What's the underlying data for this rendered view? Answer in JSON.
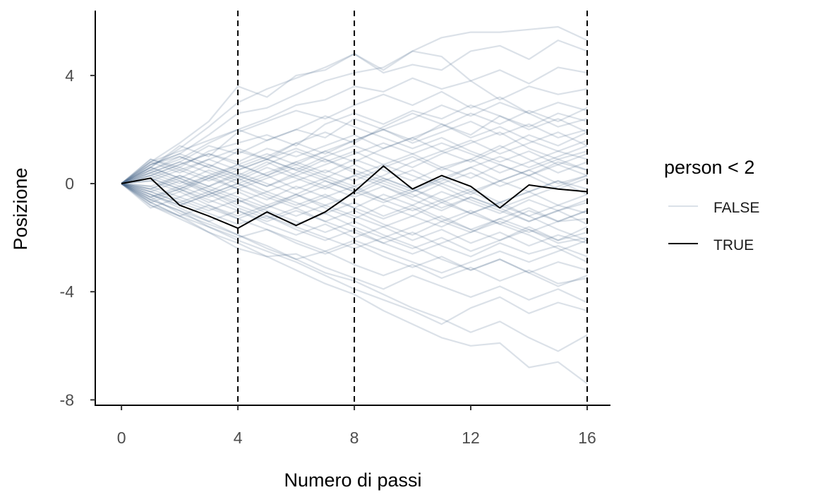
{
  "chart_data": {
    "type": "line",
    "title": "",
    "xlabel": "Numero di passi",
    "ylabel": "Posizione",
    "xlim": [
      -0.9,
      16.8
    ],
    "ylim": [
      -8.2,
      6.4
    ],
    "x_ticks": [
      0,
      4,
      8,
      12,
      16
    ],
    "y_ticks": [
      -8,
      -4,
      0,
      4
    ],
    "x_tick_labels": [
      "0",
      "4",
      "8",
      "12",
      "16"
    ],
    "y_tick_labels": [
      "-8",
      "-4",
      "0",
      "4"
    ],
    "reference_lines_x": [
      4,
      8,
      16
    ],
    "grid": false,
    "legend": {
      "title": "person < 2",
      "position": "right",
      "entries": [
        {
          "label": "FALSE",
          "color": "#4a6a8c",
          "opacity": 0.2
        },
        {
          "label": "TRUE",
          "color": "#000000",
          "opacity": 1
        }
      ]
    },
    "x": [
      0,
      1,
      2,
      3,
      4,
      5,
      6,
      7,
      8,
      9,
      10,
      11,
      12,
      13,
      14,
      15,
      16
    ],
    "series": [
      {
        "group": "TRUE",
        "values": [
          0,
          0.2,
          -0.8,
          -1.2,
          -1.65,
          -1.05,
          -1.55,
          -1.05,
          -0.3,
          0.65,
          -0.2,
          0.3,
          -0.1,
          -0.9,
          -0.05,
          -0.2,
          -0.3
        ]
      },
      {
        "group": "FALSE",
        "values": [
          0,
          0.6,
          1.3,
          2.1,
          3.0,
          3.5,
          3.9,
          4.3,
          4.8,
          4.2,
          4.9,
          5.4,
          5.6,
          5.6,
          5.7,
          5.8,
          5.3
        ]
      },
      {
        "group": "FALSE",
        "values": [
          0,
          0.8,
          1.5,
          2.3,
          3.6,
          3.2,
          4.0,
          4.2,
          4.8,
          4.1,
          4.4,
          4.2,
          4.9,
          5.1,
          4.6,
          5.3,
          4.9
        ]
      },
      {
        "group": "FALSE",
        "values": [
          0,
          0.7,
          1.1,
          1.8,
          2.6,
          2.8,
          3.3,
          3.8,
          4.1,
          4.3,
          4.9,
          4.7,
          3.8,
          4.2,
          3.7,
          4.3,
          4.1
        ]
      },
      {
        "group": "FALSE",
        "values": [
          0,
          0.5,
          0.9,
          1.5,
          2.0,
          2.4,
          2.9,
          3.1,
          3.6,
          3.4,
          3.9,
          3.5,
          3.8,
          3.1,
          3.6,
          3.3,
          3.5
        ]
      },
      {
        "group": "FALSE",
        "values": [
          0,
          0.6,
          1.4,
          1.0,
          1.9,
          2.3,
          2.7,
          2.4,
          2.9,
          3.3,
          2.9,
          3.4,
          2.8,
          3.2,
          2.6,
          3.0,
          2.7
        ]
      },
      {
        "group": "FALSE",
        "values": [
          0,
          0.9,
          0.6,
          1.2,
          1.5,
          1.8,
          1.4,
          2.2,
          2.6,
          2.2,
          2.7,
          2.4,
          2.9,
          2.5,
          2.1,
          2.6,
          2.3
        ]
      },
      {
        "group": "FALSE",
        "values": [
          0,
          0.4,
          0.8,
          1.4,
          1.1,
          1.6,
          2.0,
          1.7,
          2.4,
          2.0,
          1.6,
          2.2,
          1.8,
          2.5,
          2.0,
          2.4,
          1.9
        ]
      },
      {
        "group": "FALSE",
        "values": [
          0,
          0.7,
          1.0,
          0.6,
          1.2,
          0.9,
          1.5,
          1.9,
          1.5,
          2.1,
          2.6,
          2.2,
          1.7,
          2.1,
          1.6,
          1.2,
          1.6
        ]
      },
      {
        "group": "FALSE",
        "values": [
          0,
          0.3,
          0.7,
          1.1,
          0.8,
          1.3,
          1.0,
          1.4,
          1.8,
          1.3,
          1.7,
          1.2,
          1.6,
          1.1,
          1.5,
          1.9,
          1.4
        ]
      },
      {
        "group": "FALSE",
        "values": [
          0,
          0.8,
          0.4,
          0.9,
          1.3,
          0.9,
          0.5,
          1.0,
          1.4,
          1.0,
          0.6,
          1.1,
          1.5,
          1.9,
          1.3,
          0.9,
          1.2
        ]
      },
      {
        "group": "FALSE",
        "values": [
          0,
          0.5,
          1.0,
          0.6,
          0.2,
          0.7,
          1.2,
          0.8,
          1.2,
          0.7,
          1.1,
          0.6,
          0.9,
          0.4,
          0.8,
          1.2,
          0.9
        ]
      },
      {
        "group": "FALSE",
        "values": [
          0,
          0.2,
          0.6,
          0.2,
          0.7,
          0.3,
          0.8,
          0.4,
          0.9,
          0.5,
          0.1,
          0.6,
          0.2,
          0.7,
          0.3,
          0.8,
          0.5
        ]
      },
      {
        "group": "FALSE",
        "values": [
          0,
          0.6,
          0.2,
          0.7,
          0.3,
          -0.1,
          0.4,
          0.9,
          0.5,
          0.1,
          0.5,
          0.0,
          0.4,
          -0.1,
          0.3,
          -0.2,
          0.2
        ]
      },
      {
        "group": "FALSE",
        "values": [
          0,
          0.4,
          0.0,
          0.5,
          0.1,
          0.6,
          0.2,
          -0.2,
          0.3,
          -0.1,
          -0.5,
          0.0,
          -0.4,
          0.1,
          -0.3,
          0.1,
          -0.2
        ]
      },
      {
        "group": "FALSE",
        "values": [
          0,
          -0.2,
          0.3,
          -0.1,
          0.4,
          0.0,
          -0.4,
          0.1,
          -0.3,
          0.2,
          -0.2,
          -0.6,
          -0.2,
          -0.7,
          -0.3,
          -0.8,
          -0.4
        ]
      },
      {
        "group": "FALSE",
        "values": [
          0,
          0.1,
          -0.3,
          0.2,
          -0.2,
          -0.6,
          -0.1,
          -0.5,
          -0.9,
          -0.4,
          -0.8,
          -0.3,
          -0.7,
          -1.1,
          -0.6,
          -1.0,
          -0.7
        ]
      },
      {
        "group": "FALSE",
        "values": [
          0,
          -0.3,
          0.1,
          -0.4,
          0.0,
          -0.5,
          -0.9,
          -0.5,
          -0.1,
          -0.6,
          -1.0,
          -0.6,
          -1.1,
          -0.7,
          -1.2,
          -0.8,
          -1.1
        ]
      },
      {
        "group": "FALSE",
        "values": [
          0,
          -0.5,
          -0.2,
          -0.7,
          -0.3,
          -0.8,
          -0.4,
          -0.9,
          -1.3,
          -0.8,
          -1.2,
          -1.6,
          -1.1,
          -1.5,
          -1.0,
          -1.4,
          -1.3
        ]
      },
      {
        "group": "FALSE",
        "values": [
          0,
          -0.4,
          -0.8,
          -0.4,
          -0.9,
          -1.3,
          -0.9,
          -1.4,
          -1.0,
          -1.5,
          -1.9,
          -1.4,
          -1.8,
          -1.3,
          -1.7,
          -2.1,
          -1.6
        ]
      },
      {
        "group": "FALSE",
        "values": [
          0,
          -0.6,
          -1.0,
          -1.4,
          -1.0,
          -1.5,
          -1.9,
          -1.5,
          -2.0,
          -1.6,
          -2.1,
          -1.7,
          -2.2,
          -1.8,
          -2.3,
          -1.9,
          -2.2
        ]
      },
      {
        "group": "FALSE",
        "values": [
          0,
          -0.3,
          -0.7,
          -1.1,
          -1.5,
          -1.2,
          -1.7,
          -2.1,
          -1.7,
          -2.2,
          -1.8,
          -2.3,
          -2.7,
          -2.2,
          -2.6,
          -2.3,
          -2.7
        ]
      },
      {
        "group": "FALSE",
        "values": [
          0,
          -0.7,
          -1.2,
          -1.6,
          -2.0,
          -1.7,
          -2.2,
          -2.6,
          -2.2,
          -2.7,
          -3.1,
          -2.7,
          -3.2,
          -2.8,
          -3.3,
          -2.9,
          -3.2
        ]
      },
      {
        "group": "FALSE",
        "values": [
          0,
          -0.5,
          -1.1,
          -1.5,
          -1.9,
          -2.4,
          -2.8,
          -2.5,
          -3.0,
          -3.4,
          -3.0,
          -3.5,
          -3.1,
          -3.6,
          -3.2,
          -3.7,
          -3.5
        ]
      },
      {
        "group": "FALSE",
        "values": [
          0,
          -0.8,
          -1.3,
          -1.8,
          -2.4,
          -2.7,
          -2.6,
          -3.1,
          -3.5,
          -3.9,
          -3.4,
          -3.8,
          -4.2,
          -3.8,
          -4.3,
          -3.9,
          -4.4
        ]
      },
      {
        "group": "FALSE",
        "values": [
          0,
          -0.6,
          -1.0,
          -1.6,
          -2.1,
          -2.5,
          -2.9,
          -3.4,
          -3.9,
          -4.3,
          -4.7,
          -5.2,
          -4.6,
          -4.2,
          -4.8,
          -4.4,
          -4.7
        ]
      },
      {
        "group": "FALSE",
        "values": [
          0,
          -0.4,
          -0.9,
          -1.4,
          -1.9,
          -2.3,
          -2.8,
          -3.3,
          -3.6,
          -4.1,
          -4.6,
          -5.0,
          -5.5,
          -5.1,
          -5.7,
          -6.2,
          -5.6
        ]
      },
      {
        "group": "FALSE",
        "values": [
          0,
          -0.7,
          -1.2,
          -1.8,
          -2.2,
          -2.7,
          -3.2,
          -3.7,
          -4.1,
          -4.7,
          -5.2,
          -5.7,
          -6.0,
          -5.9,
          -6.8,
          -6.6,
          -7.4
        ]
      },
      {
        "group": "FALSE",
        "values": [
          0,
          -0.2,
          0.2,
          -0.3,
          -0.7,
          -0.3,
          0.1,
          0.5,
          0.1,
          0.6,
          1.0,
          0.5,
          0.9,
          1.4,
          0.9,
          0.4,
          0.8
        ]
      },
      {
        "group": "FALSE",
        "values": [
          0,
          0.3,
          -0.1,
          -0.5,
          -0.1,
          0.3,
          -0.2,
          0.2,
          0.7,
          0.2,
          -0.2,
          0.2,
          -0.3,
          0.1,
          0.5,
          0.0,
          0.3
        ]
      },
      {
        "group": "FALSE",
        "values": [
          0,
          -0.1,
          -0.5,
          -0.9,
          -1.3,
          -0.9,
          -0.4,
          -0.8,
          -0.4,
          0.1,
          -0.3,
          0.2,
          0.6,
          0.1,
          0.5,
          0.9,
          0.5
        ]
      },
      {
        "group": "FALSE",
        "values": [
          0,
          0.7,
          1.1,
          0.7,
          0.3,
          0.8,
          0.3,
          -0.1,
          -0.5,
          -0.1,
          -0.6,
          -1.0,
          -0.5,
          -0.9,
          -1.4,
          -1.0,
          -1.5
        ]
      },
      {
        "group": "FALSE",
        "values": [
          0,
          0.5,
          0.1,
          -0.3,
          0.2,
          -0.3,
          -0.7,
          -1.1,
          -0.7,
          -1.2,
          -0.8,
          -1.3,
          -1.7,
          -2.1,
          -1.7,
          -2.2,
          -2.0
        ]
      },
      {
        "group": "FALSE",
        "values": [
          0,
          -0.6,
          -0.2,
          0.2,
          0.6,
          1.0,
          1.5,
          1.1,
          1.6,
          2.0,
          1.5,
          1.9,
          2.3,
          1.8,
          2.2,
          1.7,
          2.0
        ]
      },
      {
        "group": "FALSE",
        "values": [
          0,
          -0.4,
          -0.8,
          -0.4,
          0.0,
          0.4,
          0.8,
          1.2,
          0.8,
          1.3,
          1.7,
          2.1,
          2.6,
          2.2,
          2.7,
          2.3,
          2.8
        ]
      },
      {
        "group": "FALSE",
        "values": [
          0,
          0.2,
          -0.2,
          0.3,
          0.7,
          1.1,
          0.7,
          1.2,
          1.6,
          2.0,
          2.4,
          2.9,
          2.5,
          3.0,
          2.6,
          2.1,
          2.4
        ]
      },
      {
        "group": "FALSE",
        "values": [
          0,
          -0.2,
          -0.6,
          -1.0,
          -0.6,
          -1.1,
          -1.5,
          -1.1,
          -1.6,
          -2.0,
          -2.4,
          -2.0,
          -2.5,
          -2.1,
          -1.6,
          -2.1,
          -1.8
        ]
      },
      {
        "group": "FALSE",
        "values": [
          0,
          0.4,
          0.8,
          0.4,
          0.0,
          -0.4,
          -0.8,
          -0.4,
          -0.9,
          -1.3,
          -0.9,
          -1.4,
          -1.0,
          -1.5,
          -1.9,
          -2.4,
          -2.9
        ]
      },
      {
        "group": "FALSE",
        "values": [
          0,
          0.6,
          0.2,
          -0.2,
          -0.6,
          -1.0,
          -1.4,
          -1.8,
          -1.4,
          -1.9,
          -2.3,
          -2.8,
          -3.2,
          -2.8,
          -3.3,
          -3.8,
          -3.4
        ]
      },
      {
        "group": "FALSE",
        "values": [
          0,
          -0.5,
          -0.1,
          0.3,
          -0.2,
          0.2,
          0.6,
          0.2,
          -0.2,
          -0.6,
          -0.2,
          -0.7,
          -1.1,
          -0.7,
          -0.3,
          0.1,
          -0.4
        ]
      },
      {
        "group": "FALSE",
        "values": [
          0,
          0.3,
          0.7,
          1.1,
          0.7,
          0.3,
          0.7,
          0.3,
          -0.1,
          0.3,
          0.8,
          1.2,
          0.8,
          1.3,
          1.8,
          1.4,
          1.9
        ]
      },
      {
        "group": "FALSE",
        "values": [
          0,
          -0.3,
          -0.7,
          -0.3,
          -0.8,
          -1.2,
          -1.6,
          -2.0,
          -2.4,
          -2.0,
          -1.6,
          -1.2,
          -1.7,
          -1.3,
          -0.9,
          -1.4,
          -1.0
        ]
      },
      {
        "group": "FALSE",
        "values": [
          0,
          0.8,
          1.2,
          1.6,
          2.0,
          1.6,
          2.0,
          2.5,
          2.1,
          1.7,
          1.3,
          1.7,
          1.2,
          0.8,
          1.2,
          0.7,
          1.1
        ]
      },
      {
        "group": "FALSE",
        "values": [
          0,
          -0.7,
          -0.3,
          -0.8,
          -1.2,
          -0.8,
          -1.2,
          -0.8,
          -1.2,
          -1.6,
          -1.2,
          -0.7,
          -0.3,
          -0.8,
          -1.2,
          -1.7,
          -2.1
        ]
      },
      {
        "group": "FALSE",
        "values": [
          0,
          0.1,
          0.5,
          0.9,
          0.5,
          0.9,
          1.3,
          0.9,
          0.4,
          0.0,
          -0.4,
          -0.9,
          -0.5,
          -0.9,
          -0.5,
          -0.1,
          0.3
        ]
      },
      {
        "group": "FALSE",
        "values": [
          0,
          -0.1,
          0.3,
          -0.1,
          -0.5,
          -0.9,
          -0.5,
          -0.1,
          0.3,
          0.7,
          0.3,
          -0.1,
          -0.6,
          -1.0,
          -1.4,
          -1.0,
          -0.6
        ]
      },
      {
        "group": "FALSE",
        "values": [
          0,
          0.9,
          0.5,
          0.1,
          0.5,
          0.9,
          0.5,
          0.1,
          -0.3,
          -0.7,
          -0.3,
          0.1,
          0.6,
          1.0,
          0.6,
          1.0,
          1.4
        ]
      },
      {
        "group": "FALSE",
        "values": [
          0,
          -0.8,
          -1.2,
          -0.8,
          -1.3,
          -1.7,
          -2.1,
          -2.5,
          -2.1,
          -2.5,
          -2.9,
          -3.3,
          -2.9,
          -2.5,
          -2.9,
          -2.5,
          -2.1
        ]
      },
      {
        "group": "FALSE",
        "values": [
          0,
          0.2,
          -0.2,
          -0.6,
          -1.0,
          -1.4,
          -1.0,
          -1.4,
          -1.8,
          -2.2,
          -2.6,
          -2.2,
          -1.8,
          -1.4,
          -1.8,
          -1.4,
          -1.0
        ]
      },
      {
        "group": "FALSE",
        "values": [
          0,
          -0.9,
          -0.5,
          -0.1,
          0.3,
          -0.1,
          0.3,
          0.7,
          1.1,
          1.5,
          1.1,
          1.5,
          1.1,
          0.7,
          0.3,
          0.7,
          0.3
        ]
      }
    ]
  }
}
